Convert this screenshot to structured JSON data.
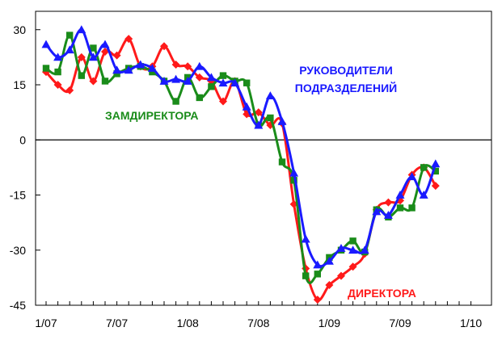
{
  "chart_data": {
    "type": "line",
    "title": "",
    "xlabel": "",
    "ylabel": "",
    "ylim": [
      -45,
      35
    ],
    "yticks": [
      30,
      15,
      0,
      -15,
      -30,
      -45
    ],
    "x_tick_labels": [
      "1/07",
      "7/07",
      "1/08",
      "7/08",
      "1/09",
      "7/09",
      "1/10"
    ],
    "x_tick_index": [
      0,
      6,
      12,
      18,
      24,
      30,
      36
    ],
    "x_minor_count": 37,
    "grid": false,
    "zero_line": true,
    "x_range": [
      0,
      36
    ],
    "series": [
      {
        "name": "ДИРЕКТОРА",
        "color": "#ff1a1a",
        "marker": "diamond",
        "label_pos": "bottom-right",
        "values": [
          18.5,
          15,
          13.5,
          22.5,
          16,
          24,
          23,
          27.5,
          20,
          20,
          25.5,
          20.5,
          20,
          17,
          16,
          10.5,
          16,
          7,
          7.5,
          4,
          4.5,
          -17.5,
          -35,
          -43.5,
          -39.5,
          -37,
          -34.5,
          -31,
          -19,
          -17,
          -16.5,
          -9.5,
          -7.5,
          -12.5
        ]
      },
      {
        "name": "ЗАМДИРЕКТОРА",
        "color": "#1a8c1a",
        "marker": "square",
        "label_pos": "middle-left",
        "values": [
          19.5,
          18.5,
          28.5,
          17.5,
          25,
          16,
          18,
          19.5,
          20,
          18.5,
          16,
          10.5,
          17,
          11.5,
          14.5,
          17.5,
          16,
          15.5,
          4,
          6,
          -6,
          -11,
          -37,
          -36.5,
          -32,
          -30,
          -27.5,
          -30.5,
          -19,
          -21,
          -18.5,
          -18.5,
          -7.5,
          -8.5
        ]
      },
      {
        "name": "РУКОВОДИТЕЛИ\nПОДРАЗДЕЛЕНИЙ",
        "color": "#1a1aff",
        "marker": "triangle",
        "label_pos": "top-right",
        "values": [
          26,
          22.5,
          24.5,
          30,
          22.5,
          26,
          19,
          19,
          20.5,
          19.5,
          16,
          16.5,
          16,
          20,
          17,
          15.5,
          15.5,
          9,
          4,
          12,
          5,
          -9,
          -27,
          -34,
          -33,
          -29.5,
          -30,
          -30,
          -19.5,
          -20.5,
          -15,
          -10,
          -15,
          -6.5
        ]
      }
    ]
  }
}
